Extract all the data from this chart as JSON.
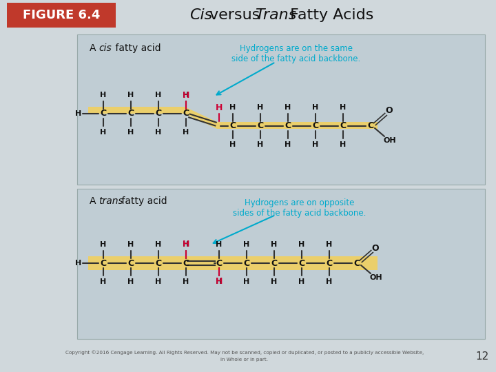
{
  "figure_label": "FIGURE 6.4",
  "fig_label_bg": "#c0392b",
  "fig_label_color": "#ffffff",
  "background_color": "#d0d8dc",
  "panel_bg": "#c0cdd4",
  "highlight_color": "#f0d060",
  "copyright_text": "Copyright ©2016 Cengage Learning. All Rights Reserved. May not be scanned, copied or duplicated, or posted to a publicly accessible Website,",
  "copyright_text2": "in Whole or in part.",
  "page_number": "12",
  "cis_label_a": "A ",
  "cis_label_cis": "cis",
  "cis_label_rest": " fatty acid",
  "trans_label_a": "A ",
  "trans_label_trans": "trans",
  "trans_label_rest": " fatty acid",
  "cis_note": "Hydrogens are on the same\nside of the fatty acid backbone.",
  "trans_note": "Hydrogens are on opposite\nsides of the fatty acid backbone.",
  "note_color": "#00aacc",
  "red_color": "#cc0033",
  "bond_color": "#333333",
  "atom_color": "#111111",
  "title_normal1": "versus ",
  "title_normal2": " Fatty Acids",
  "title_italic1": "Cis",
  "title_italic2": "Trans"
}
